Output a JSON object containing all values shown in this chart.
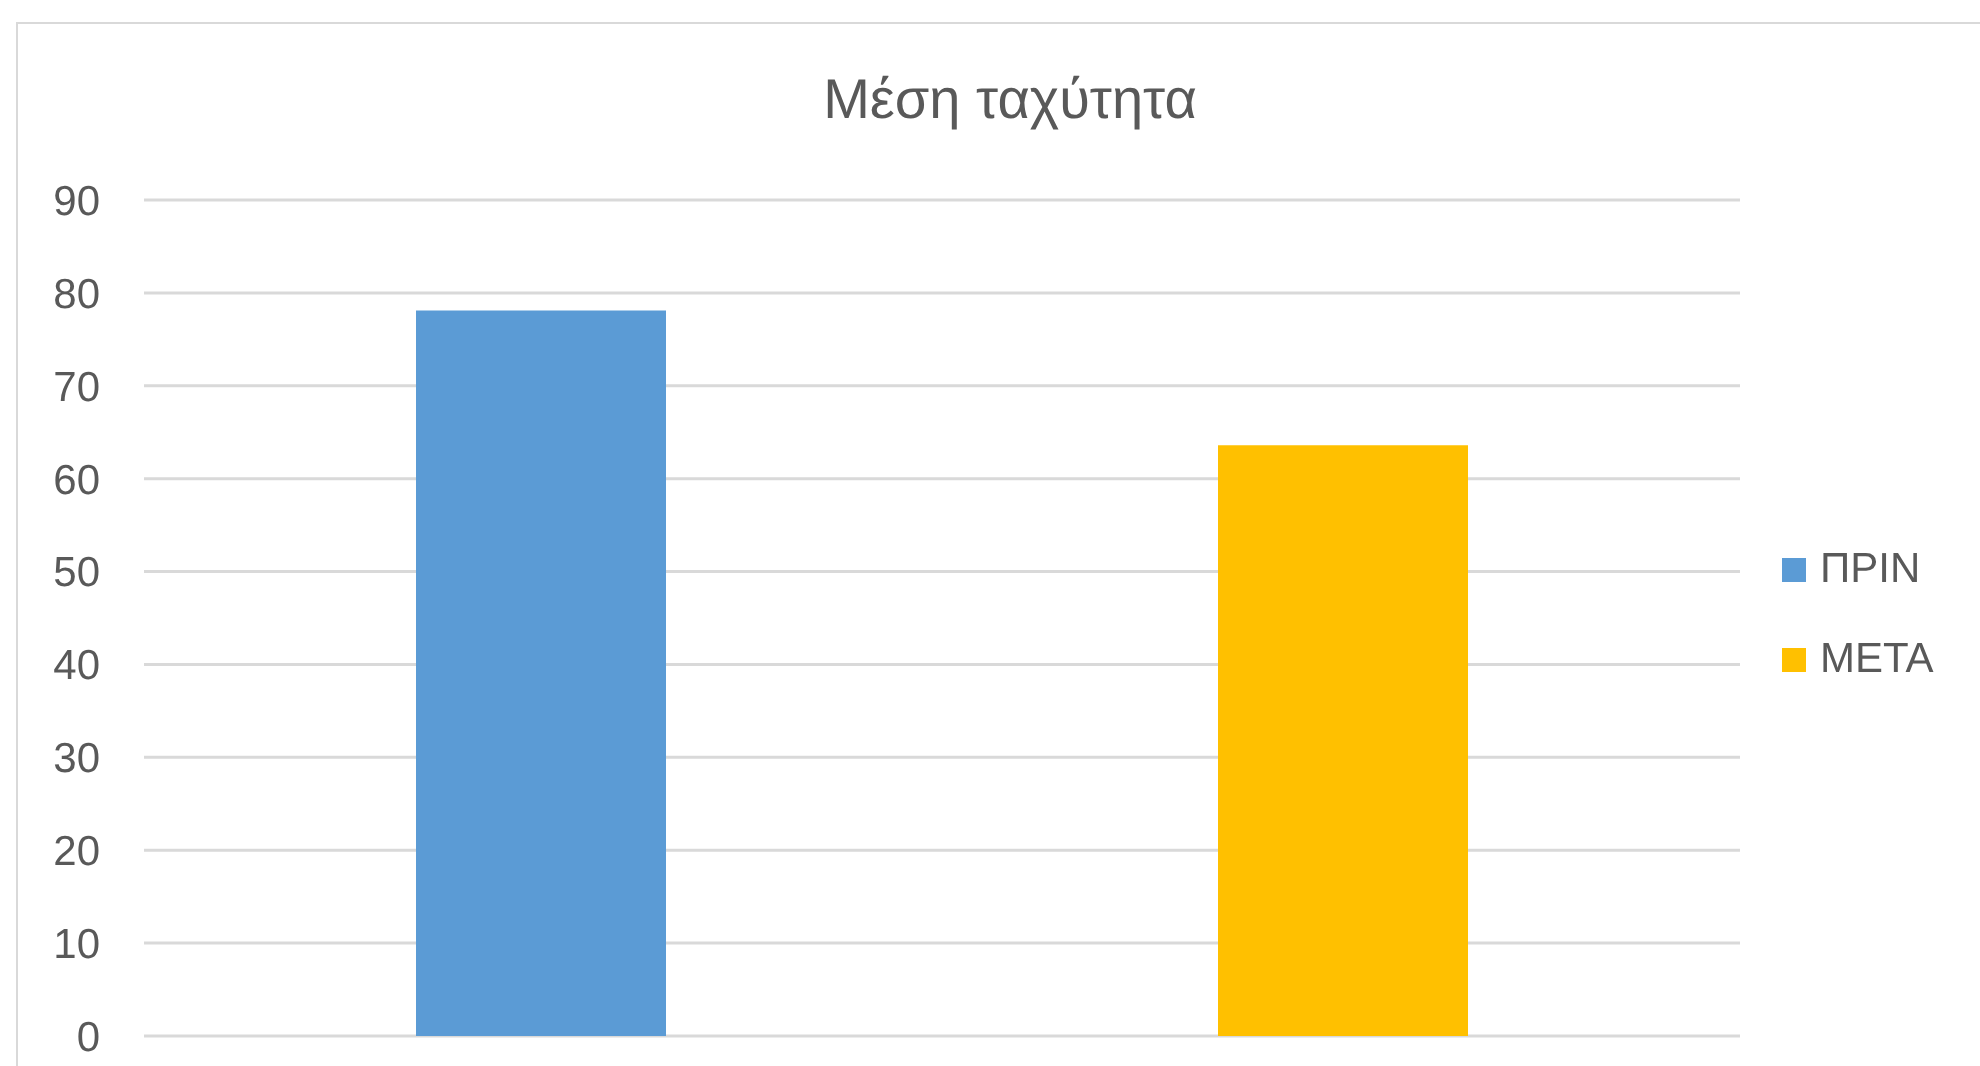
{
  "chart_data": {
    "type": "bar",
    "title": "Μέση ταχύτητα",
    "categories": [
      null
    ],
    "series": [
      {
        "name": "ΠΡΙΝ",
        "color": "#5b9bd5",
        "values": [
          78.1
        ]
      },
      {
        "name": "ΜΕΤΑ",
        "color": "#ffc000",
        "values": [
          63.6
        ]
      }
    ],
    "ylim": [
      0,
      90
    ],
    "yticks": [
      0,
      10,
      20,
      30,
      40,
      50,
      60,
      70,
      80,
      90
    ],
    "grid": "y",
    "legend": "right"
  }
}
